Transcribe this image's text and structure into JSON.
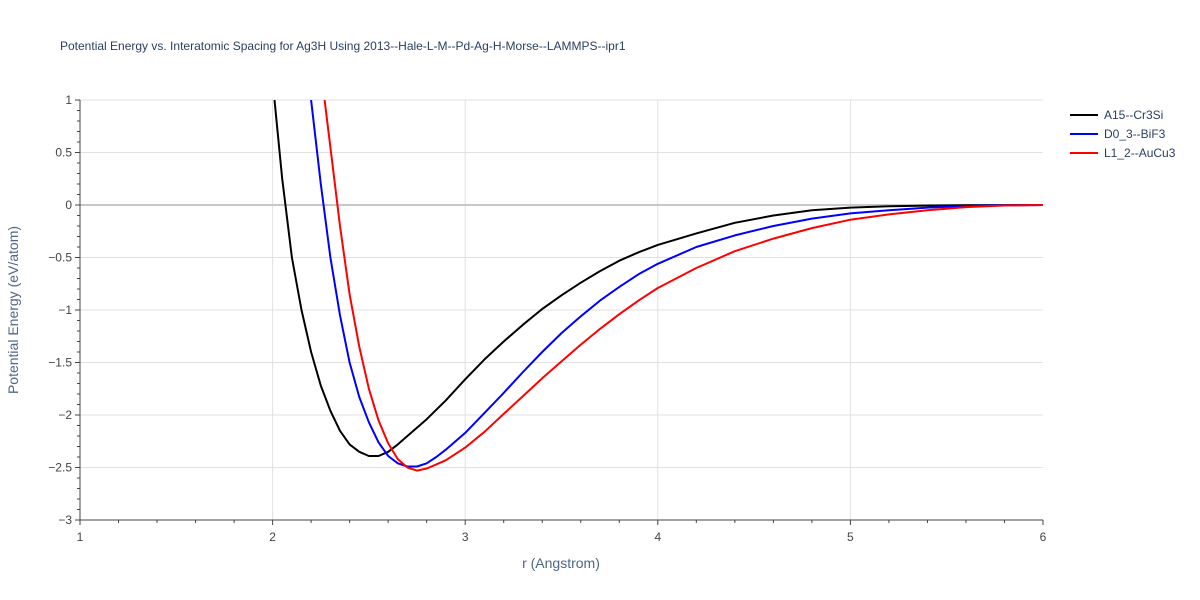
{
  "chart_data": {
    "type": "line",
    "title": "Potential Energy vs. Interatomic Spacing for Ag3H Using 2013--Hale-L-M--Pd-Ag-H-Morse--LAMMPS--ipr1",
    "xlabel": "r (Angstrom)",
    "ylabel": "Potential Energy (eV/atom)",
    "xlim": [
      1,
      6
    ],
    "ylim": [
      -3,
      1
    ],
    "xticks": [
      1,
      2,
      3,
      4,
      5,
      6
    ],
    "yticks": [
      1,
      0.5,
      0,
      -0.5,
      -1,
      -1.5,
      -2,
      -2.5,
      -3
    ],
    "ytick_labels": [
      "1",
      "0.5",
      "0",
      "−0.5",
      "−1",
      "−1.5",
      "−2",
      "−2.5",
      "−3"
    ],
    "grid": true,
    "legend_position": "top-right",
    "series": [
      {
        "name": "A15--Cr3Si",
        "color": "#000000",
        "x": [
          2.01,
          2.05,
          2.1,
          2.15,
          2.2,
          2.25,
          2.3,
          2.35,
          2.4,
          2.45,
          2.5,
          2.55,
          2.6,
          2.65,
          2.7,
          2.8,
          2.9,
          3.0,
          3.1,
          3.2,
          3.3,
          3.4,
          3.5,
          3.6,
          3.7,
          3.8,
          3.9,
          4.0,
          4.2,
          4.4,
          4.6,
          4.8,
          5.0,
          5.2,
          5.4,
          5.6,
          5.8,
          6.0
        ],
        "y": [
          1.0,
          0.25,
          -0.5,
          -1.0,
          -1.4,
          -1.72,
          -1.96,
          -2.15,
          -2.28,
          -2.35,
          -2.39,
          -2.39,
          -2.35,
          -2.28,
          -2.2,
          -2.04,
          -1.86,
          -1.66,
          -1.47,
          -1.3,
          -1.14,
          -0.99,
          -0.86,
          -0.74,
          -0.63,
          -0.53,
          -0.45,
          -0.38,
          -0.27,
          -0.17,
          -0.1,
          -0.05,
          -0.025,
          -0.012,
          -0.006,
          -0.003,
          -0.001,
          0.0
        ]
      },
      {
        "name": "D0_3--BiF3",
        "color": "#0000ff",
        "x": [
          2.2,
          2.25,
          2.3,
          2.35,
          2.4,
          2.45,
          2.5,
          2.55,
          2.6,
          2.65,
          2.7,
          2.75,
          2.8,
          2.85,
          2.9,
          3.0,
          3.1,
          3.2,
          3.3,
          3.4,
          3.5,
          3.6,
          3.7,
          3.8,
          3.9,
          4.0,
          4.2,
          4.4,
          4.6,
          4.8,
          5.0,
          5.2,
          5.4,
          5.6,
          5.8,
          6.0
        ],
        "y": [
          1.0,
          0.2,
          -0.5,
          -1.05,
          -1.5,
          -1.83,
          -2.07,
          -2.26,
          -2.39,
          -2.46,
          -2.49,
          -2.49,
          -2.46,
          -2.4,
          -2.33,
          -2.17,
          -1.98,
          -1.79,
          -1.59,
          -1.4,
          -1.22,
          -1.06,
          -0.91,
          -0.78,
          -0.66,
          -0.56,
          -0.4,
          -0.29,
          -0.2,
          -0.13,
          -0.08,
          -0.05,
          -0.025,
          -0.01,
          -0.003,
          0.0
        ]
      },
      {
        "name": "L1_2--AuCu3",
        "color": "#ff0000",
        "x": [
          2.27,
          2.3,
          2.35,
          2.4,
          2.45,
          2.5,
          2.55,
          2.6,
          2.65,
          2.7,
          2.75,
          2.8,
          2.85,
          2.9,
          3.0,
          3.1,
          3.2,
          3.3,
          3.4,
          3.5,
          3.6,
          3.7,
          3.8,
          3.9,
          4.0,
          4.2,
          4.4,
          4.6,
          4.8,
          5.0,
          5.2,
          5.4,
          5.6,
          5.8,
          6.0
        ],
        "y": [
          1.0,
          0.55,
          -0.2,
          -0.85,
          -1.35,
          -1.75,
          -2.05,
          -2.27,
          -2.42,
          -2.5,
          -2.53,
          -2.51,
          -2.47,
          -2.43,
          -2.31,
          -2.16,
          -1.99,
          -1.82,
          -1.65,
          -1.49,
          -1.33,
          -1.18,
          -1.04,
          -0.91,
          -0.79,
          -0.6,
          -0.44,
          -0.32,
          -0.22,
          -0.14,
          -0.09,
          -0.05,
          -0.02,
          -0.005,
          0.0
        ]
      }
    ]
  }
}
